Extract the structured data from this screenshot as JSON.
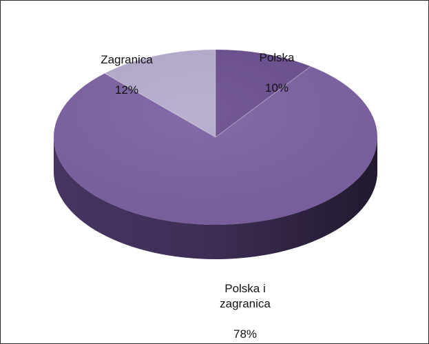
{
  "chart_data": {
    "type": "pie",
    "three_d": true,
    "title": "",
    "categories": [
      "Polska",
      "Polska i zagranica",
      "Zagranica"
    ],
    "values": [
      10,
      78,
      12
    ],
    "labels": [
      {
        "category": "Polska",
        "text": "Polska",
        "value_text": "10%"
      },
      {
        "category": "Polska i zagranica",
        "text": "Polska i\nzagranica",
        "value_text": "78%"
      },
      {
        "category": "Zagranica",
        "text": "Zagranica",
        "value_text": "12%"
      }
    ],
    "colors": {
      "Polska": "#6b4f8f",
      "Polska i zagranica": "#7d62a2",
      "Zagranica": "#b6abcd"
    },
    "side_colors": {
      "Polska": "#3c2c55",
      "Polska i zagranica": "#4a3766",
      "Zagranica": "#7c7093"
    },
    "legend": "none"
  }
}
